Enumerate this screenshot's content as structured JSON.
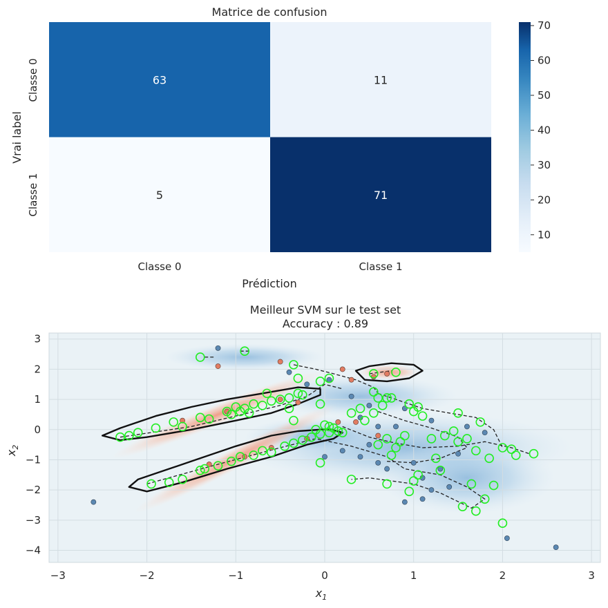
{
  "chart_data": [
    {
      "type": "heatmap",
      "title": "Matrice de confusion",
      "xlabel": "Prédiction",
      "ylabel": "Vrai label",
      "x_categories": [
        "Classe 0",
        "Classe 1"
      ],
      "y_categories": [
        "Classe 0",
        "Classe 1"
      ],
      "values": [
        [
          63,
          11
        ],
        [
          5,
          71
        ]
      ],
      "colormap": "Blues",
      "colorbar": {
        "min": 5,
        "max": 71,
        "ticks": [
          10,
          20,
          30,
          40,
          50,
          60,
          70
        ]
      }
    },
    {
      "type": "scatter",
      "title_lines": [
        "Meilleur SVM sur le test set",
        "Accuracy : 0.89"
      ],
      "xlabel": "x",
      "xlabel_sub": "1",
      "ylabel": "x",
      "ylabel_sub": "2",
      "xlim": [
        -3.1,
        3.1
      ],
      "ylim": [
        -4.4,
        3.2
      ],
      "xticks": [
        -3,
        -2,
        -1,
        0,
        1,
        2,
        3
      ],
      "yticks": [
        -4,
        -3,
        -2,
        -1,
        0,
        1,
        2,
        3
      ],
      "tick_labels_x": [
        "−3",
        "−2",
        "−1",
        "0",
        "1",
        "2",
        "3"
      ],
      "tick_labels_y": [
        "−4",
        "−3",
        "−2",
        "−1",
        "0",
        "1",
        "2",
        "3"
      ],
      "grid": true,
      "colors": {
        "class0": "#e27c62",
        "class1": "#5b88b2",
        "support_vectors": "#22ee22",
        "boundary": "#111111",
        "margin": "#222222"
      },
      "decision_boundary": [
        {
          "name": "upper-band",
          "points": [
            [
              -2.5,
              -0.2
            ],
            [
              -2.3,
              -0.35
            ],
            [
              -2.0,
              -0.25
            ],
            [
              -1.5,
              0.0
            ],
            [
              -1.0,
              0.3
            ],
            [
              -0.6,
              0.55
            ],
            [
              -0.3,
              0.85
            ],
            [
              -0.05,
              1.15
            ],
            [
              -0.05,
              1.35
            ],
            [
              -0.3,
              1.4
            ],
            [
              -0.7,
              1.2
            ],
            [
              -1.1,
              1.0
            ],
            [
              -1.5,
              0.75
            ],
            [
              -1.9,
              0.45
            ],
            [
              -2.3,
              0.05
            ],
            [
              -2.5,
              -0.2
            ]
          ]
        },
        {
          "name": "lower-band",
          "points": [
            [
              -2.2,
              -1.9
            ],
            [
              -2.0,
              -2.05
            ],
            [
              -1.6,
              -1.75
            ],
            [
              -1.1,
              -1.3
            ],
            [
              -0.6,
              -0.9
            ],
            [
              -0.2,
              -0.5
            ],
            [
              0.1,
              -0.3
            ],
            [
              0.2,
              -0.1
            ],
            [
              0.05,
              0.02
            ],
            [
              -0.3,
              -0.05
            ],
            [
              -0.6,
              -0.2
            ],
            [
              -1.0,
              -0.55
            ],
            [
              -1.4,
              -0.95
            ],
            [
              -1.8,
              -1.35
            ],
            [
              -2.1,
              -1.65
            ],
            [
              -2.2,
              -1.9
            ]
          ]
        },
        {
          "name": "island",
          "points": [
            [
              0.35,
              1.95
            ],
            [
              0.5,
              2.1
            ],
            [
              0.75,
              2.2
            ],
            [
              1.0,
              2.15
            ],
            [
              1.1,
              1.95
            ],
            [
              0.95,
              1.7
            ],
            [
              0.7,
              1.6
            ],
            [
              0.45,
              1.65
            ],
            [
              0.35,
              1.95
            ]
          ]
        }
      ],
      "margins": [
        {
          "points": [
            [
              -2.3,
              -0.25
            ],
            [
              -1.5,
              0.1
            ],
            [
              -1.0,
              0.45
            ],
            [
              -0.5,
              0.8
            ],
            [
              -0.2,
              1.1
            ],
            [
              0.0,
              1.5
            ],
            [
              0.2,
              1.35
            ]
          ]
        },
        {
          "points": [
            [
              -2.0,
              -1.8
            ],
            [
              -1.2,
              -1.15
            ],
            [
              -0.5,
              -0.6
            ],
            [
              -0.1,
              -0.3
            ],
            [
              0.3,
              -0.55
            ],
            [
              0.7,
              -0.9
            ],
            [
              0.9,
              -1.3
            ],
            [
              1.3,
              -1.5
            ],
            [
              1.6,
              -1.9
            ],
            [
              1.8,
              -2.3
            ],
            [
              1.65,
              -2.6
            ],
            [
              1.3,
              -2.1
            ],
            [
              1.0,
              -1.8
            ],
            [
              0.5,
              -1.6
            ],
            [
              0.3,
              -1.65
            ]
          ]
        },
        {
          "points": [
            [
              0.2,
              0.1
            ],
            [
              0.5,
              -0.25
            ],
            [
              0.8,
              -0.45
            ],
            [
              1.1,
              -0.6
            ],
            [
              1.5,
              -0.55
            ],
            [
              1.8,
              -0.4
            ],
            [
              2.1,
              -0.6
            ],
            [
              2.3,
              -0.8
            ]
          ]
        },
        {
          "points": [
            [
              0.6,
              1.2
            ],
            [
              0.8,
              1.0
            ],
            [
              1.1,
              0.7
            ],
            [
              1.4,
              0.55
            ],
            [
              1.7,
              0.4
            ],
            [
              1.9,
              0.0
            ],
            [
              2.0,
              -0.6
            ]
          ]
        },
        {
          "points": [
            [
              -0.35,
              2.15
            ],
            [
              -0.1,
              2.0
            ],
            [
              0.1,
              1.85
            ],
            [
              0.35,
              1.65
            ],
            [
              0.55,
              1.4
            ],
            [
              0.6,
              1.2
            ]
          ]
        },
        {
          "points": [
            [
              0.6,
              0.6
            ],
            [
              0.9,
              0.3
            ],
            [
              1.2,
              0.05
            ],
            [
              1.5,
              -0.25
            ],
            [
              1.6,
              -0.6
            ],
            [
              1.3,
              -0.95
            ],
            [
              1.0,
              -1.1
            ],
            [
              0.7,
              -1.05
            ]
          ]
        },
        {
          "points": [
            [
              -1.35,
              2.4
            ],
            [
              -1.25,
              2.4
            ]
          ]
        },
        {
          "points": [
            [
              -0.95,
              2.6
            ],
            [
              -0.85,
              2.6
            ]
          ]
        },
        {
          "points": [
            [
              0.5,
              1.85
            ],
            [
              0.75,
              1.95
            ]
          ]
        }
      ],
      "class0_points": [
        [
          -1.2,
          2.1
        ],
        [
          -0.5,
          2.25
        ],
        [
          0.15,
          0.25
        ],
        [
          0.35,
          0.25
        ],
        [
          0.3,
          1.65
        ],
        [
          0.55,
          1.75
        ],
        [
          0.7,
          1.85
        ],
        [
          0.2,
          2.0
        ],
        [
          -1.1,
          0.6
        ],
        [
          -1.6,
          0.3
        ],
        [
          -0.9,
          -0.9
        ],
        [
          -1.3,
          -1.15
        ],
        [
          -0.2,
          -0.3
        ],
        [
          -0.5,
          1.0
        ],
        [
          -0.3,
          0.9
        ],
        [
          0.6,
          -0.2
        ],
        [
          -0.6,
          -0.6
        ]
      ],
      "class1_points": [
        [
          -1.2,
          2.7
        ],
        [
          -2.6,
          -2.4
        ],
        [
          2.6,
          -3.9
        ],
        [
          2.05,
          -3.6
        ],
        [
          0.05,
          1.65
        ],
        [
          0.3,
          1.1
        ],
        [
          0.5,
          0.8
        ],
        [
          0.9,
          0.7
        ],
        [
          1.2,
          0.3
        ],
        [
          0.2,
          -0.7
        ],
        [
          0.4,
          -0.9
        ],
        [
          0.6,
          -1.1
        ],
        [
          0.7,
          -1.3
        ],
        [
          1.0,
          -1.1
        ],
        [
          1.1,
          -1.6
        ],
        [
          1.2,
          -2.0
        ],
        [
          1.1,
          -2.3
        ],
        [
          0.9,
          -2.4
        ],
        [
          1.5,
          -0.8
        ],
        [
          1.6,
          0.1
        ],
        [
          0.8,
          0.1
        ],
        [
          0.4,
          0.4
        ],
        [
          -0.2,
          1.5
        ],
        [
          -0.4,
          1.9
        ],
        [
          0.0,
          -0.9
        ],
        [
          0.5,
          -0.5
        ],
        [
          1.8,
          -0.1
        ],
        [
          1.3,
          -1.3
        ],
        [
          1.4,
          -1.9
        ],
        [
          0.6,
          0.1
        ]
      ],
      "support_vectors": [
        [
          -1.4,
          2.4
        ],
        [
          -0.9,
          2.6
        ],
        [
          -0.35,
          2.15
        ],
        [
          -0.3,
          1.7
        ],
        [
          -0.05,
          1.6
        ],
        [
          0.05,
          1.7
        ],
        [
          0.55,
          1.85
        ],
        [
          0.8,
          1.9
        ],
        [
          -2.3,
          -0.25
        ],
        [
          -2.2,
          -0.2
        ],
        [
          -2.1,
          -0.1
        ],
        [
          -1.9,
          0.05
        ],
        [
          -1.7,
          0.25
        ],
        [
          -1.6,
          0.1
        ],
        [
          -1.4,
          0.4
        ],
        [
          -1.3,
          0.35
        ],
        [
          -1.1,
          0.6
        ],
        [
          -1.05,
          0.5
        ],
        [
          -1.0,
          0.75
        ],
        [
          -0.95,
          0.6
        ],
        [
          -0.9,
          0.7
        ],
        [
          -0.85,
          0.55
        ],
        [
          -0.8,
          0.85
        ],
        [
          -0.7,
          0.8
        ],
        [
          -0.65,
          1.2
        ],
        [
          -0.6,
          0.95
        ],
        [
          -0.5,
          1.0
        ],
        [
          -0.4,
          1.05
        ],
        [
          -0.3,
          1.2
        ],
        [
          -0.25,
          1.15
        ],
        [
          -1.95,
          -1.8
        ],
        [
          -1.75,
          -1.75
        ],
        [
          -1.6,
          -1.65
        ],
        [
          -1.4,
          -1.35
        ],
        [
          -1.35,
          -1.3
        ],
        [
          -1.2,
          -1.2
        ],
        [
          -1.05,
          -1.05
        ],
        [
          -0.95,
          -0.9
        ],
        [
          -0.8,
          -0.85
        ],
        [
          -0.7,
          -0.7
        ],
        [
          -0.6,
          -0.75
        ],
        [
          -0.45,
          -0.55
        ],
        [
          -0.35,
          -0.45
        ],
        [
          -0.25,
          -0.35
        ],
        [
          -0.15,
          -0.25
        ],
        [
          -0.05,
          -0.15
        ],
        [
          0.05,
          -0.1
        ],
        [
          0.15,
          -0.05
        ],
        [
          -0.4,
          0.7
        ],
        [
          -0.35,
          0.3
        ],
        [
          -0.05,
          0.85
        ],
        [
          0.05,
          0.1
        ],
        [
          0.3,
          0.55
        ],
        [
          0.4,
          0.7
        ],
        [
          0.45,
          0.3
        ],
        [
          0.55,
          1.25
        ],
        [
          0.6,
          1.05
        ],
        [
          0.65,
          0.8
        ],
        [
          0.7,
          1.05
        ],
        [
          0.75,
          1.05
        ],
        [
          0.55,
          0.55
        ],
        [
          0.6,
          -0.5
        ],
        [
          0.7,
          -0.3
        ],
        [
          0.75,
          -0.85
        ],
        [
          0.8,
          -0.6
        ],
        [
          0.85,
          -0.4
        ],
        [
          0.9,
          -0.2
        ],
        [
          0.95,
          0.85
        ],
        [
          1.0,
          0.6
        ],
        [
          1.05,
          0.75
        ],
        [
          1.1,
          0.45
        ],
        [
          1.2,
          -0.3
        ],
        [
          1.25,
          -0.95
        ],
        [
          1.3,
          -1.35
        ],
        [
          1.35,
          -0.2
        ],
        [
          1.45,
          -0.05
        ],
        [
          1.5,
          -0.4
        ],
        [
          1.5,
          0.55
        ],
        [
          1.6,
          -0.3
        ],
        [
          1.65,
          -1.8
        ],
        [
          1.7,
          -0.7
        ],
        [
          1.75,
          0.25
        ],
        [
          1.8,
          -2.3
        ],
        [
          1.85,
          -0.95
        ],
        [
          1.9,
          -1.85
        ],
        [
          2.0,
          -0.6
        ],
        [
          2.1,
          -0.65
        ],
        [
          2.15,
          -0.85
        ],
        [
          2.35,
          -0.8
        ],
        [
          1.05,
          -1.5
        ],
        [
          1.0,
          -1.7
        ],
        [
          0.95,
          -2.05
        ],
        [
          0.7,
          -1.8
        ],
        [
          0.3,
          -1.65
        ],
        [
          -0.05,
          -1.1
        ],
        [
          2.0,
          -3.1
        ],
        [
          1.7,
          -2.7
        ],
        [
          1.55,
          -2.55
        ],
        [
          0.1,
          0.05
        ],
        [
          0.2,
          -0.1
        ],
        [
          -0.1,
          0.0
        ],
        [
          0.0,
          0.15
        ]
      ]
    }
  ]
}
